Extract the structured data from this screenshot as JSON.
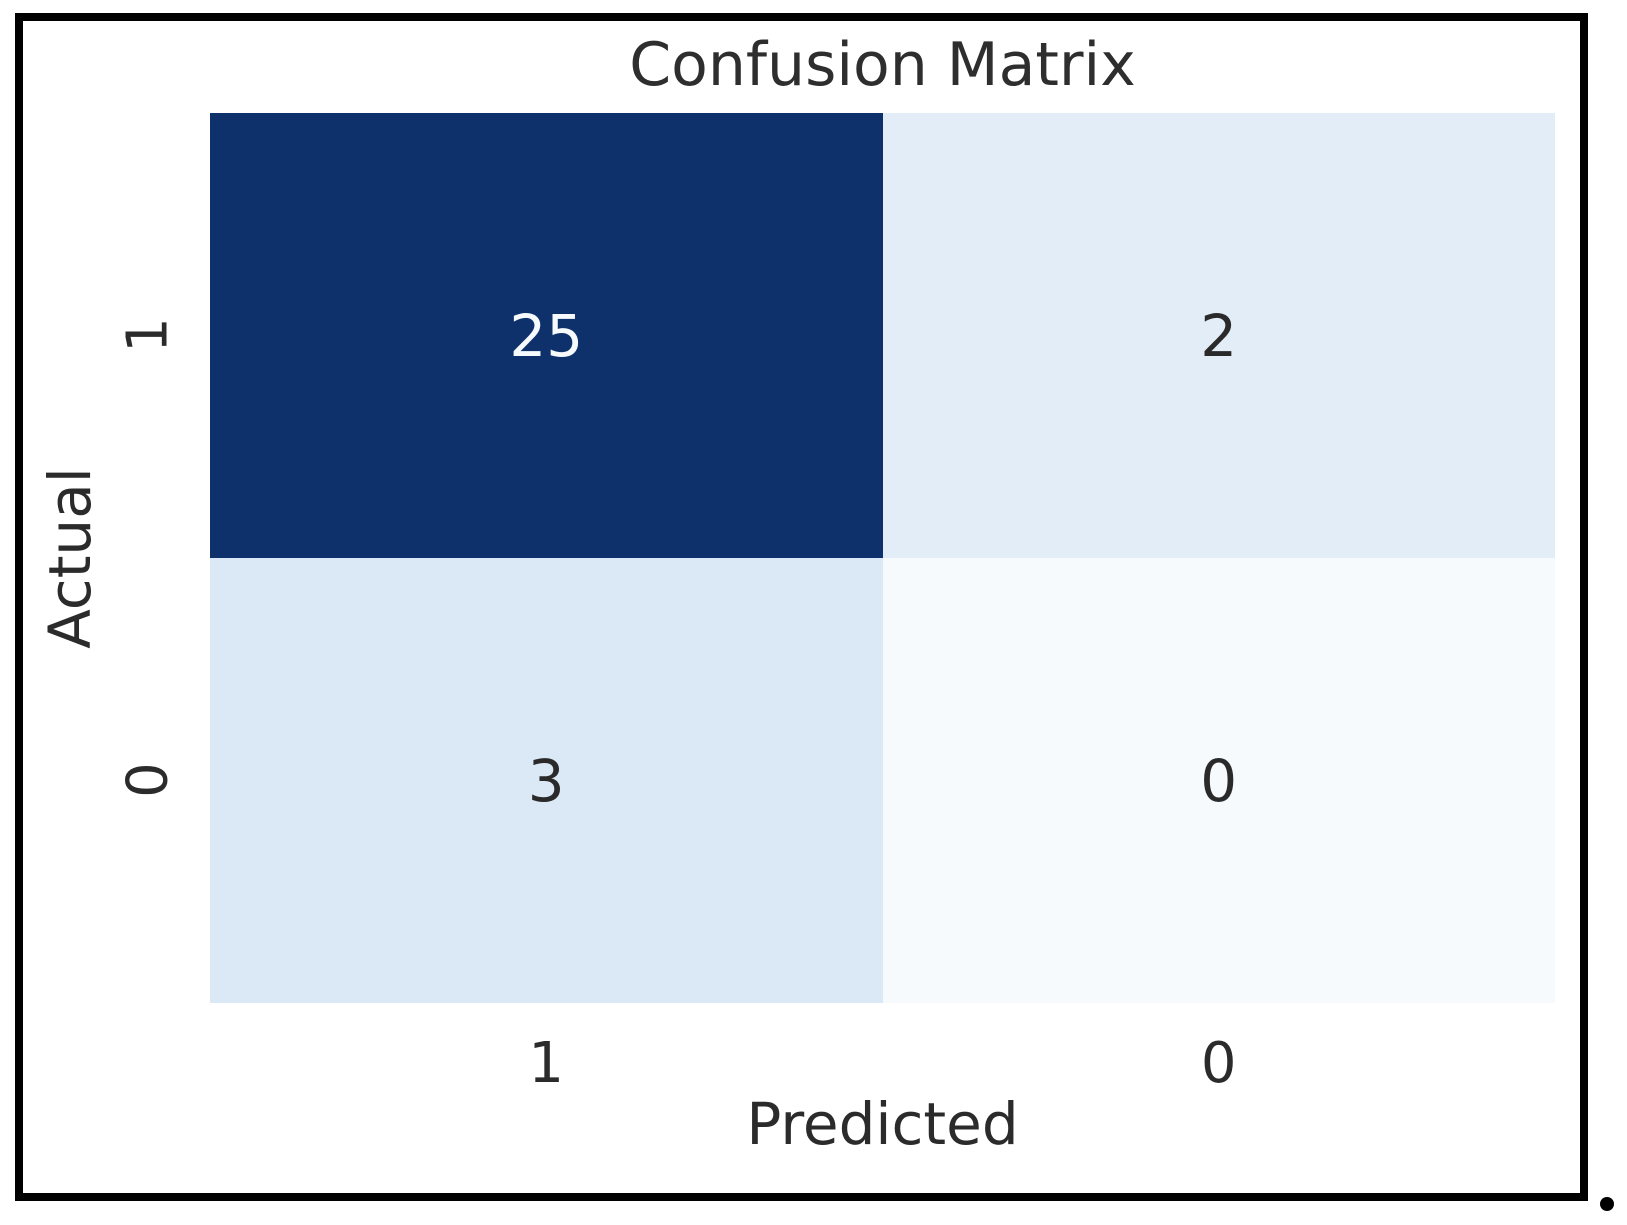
{
  "figure": {
    "background": "#ffffff",
    "frame_color": "#000000",
    "title_color": "#2e2e2e",
    "text_color": "#2b2b2b"
  },
  "chart_data": {
    "type": "heatmap",
    "title": "Confusion Matrix",
    "xlabel": "Predicted",
    "ylabel": "Actual",
    "x_tick_labels": [
      "1",
      "0"
    ],
    "y_tick_labels": [
      "1",
      "0"
    ],
    "matrix": [
      [
        25,
        2
      ],
      [
        3,
        0
      ]
    ],
    "value_range": [
      0,
      25
    ],
    "colormap": "Blues",
    "colorbar": "none",
    "legend": "none",
    "grid": false,
    "cell_colors": [
      [
        "#0e316b",
        "#e2edf8"
      ],
      [
        "#dbe8f5",
        "#f7fafd"
      ]
    ],
    "cell_text_colors": [
      [
        "#f7fafd",
        "#2a2a2a"
      ],
      [
        "#2a2a2a",
        "#2a2a2a"
      ]
    ]
  },
  "decorations": {
    "bullet_dot_color": "#000000"
  }
}
